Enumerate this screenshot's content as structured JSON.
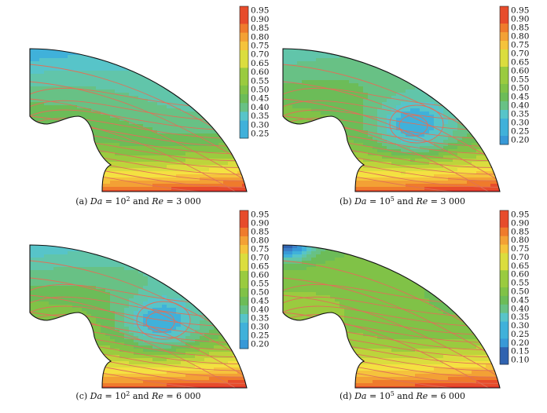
{
  "chart_data": [
    {
      "type": "heatmap",
      "panel": "a",
      "caption": {
        "prefix": "(a) ",
        "var1": "Da",
        "eq1": " = 10",
        "exp1": "2",
        "mid": " and ",
        "var2": "Re",
        "eq2": " = 3 000"
      },
      "colorbar": {
        "ticks": [
          "0.95",
          "0.90",
          "0.85",
          "0.80",
          "0.75",
          "0.70",
          "0.65",
          "0.60",
          "0.55",
          "0.50",
          "0.45",
          "0.40",
          "0.35",
          "0.30",
          "0.25"
        ],
        "min": 0.25,
        "max": 0.95
      },
      "field": {
        "top": 0.25,
        "mid": 0.48,
        "bottom": 0.95,
        "vortex": false,
        "vortexVal": 0.3,
        "cornerLow": false
      }
    },
    {
      "type": "heatmap",
      "panel": "b",
      "caption": {
        "prefix": "(b) ",
        "var1": "Da",
        "eq1": " = 10",
        "exp1": "5",
        "mid": " and ",
        "var2": "Re",
        "eq2": " = 3 000"
      },
      "colorbar": {
        "ticks": [
          "0.95",
          "0.90",
          "0.85",
          "0.80",
          "0.75",
          "0.70",
          "0.65",
          "0.60",
          "0.55",
          "0.50",
          "0.45",
          "0.40",
          "0.35",
          "0.30",
          "0.25",
          "0.20"
        ],
        "min": 0.2,
        "max": 0.95
      },
      "field": {
        "top": 0.35,
        "mid": 0.5,
        "bottom": 0.95,
        "vortex": true,
        "vortexVal": 0.25,
        "cornerLow": false
      }
    },
    {
      "type": "heatmap",
      "panel": "c",
      "caption": {
        "prefix": "(c) ",
        "var1": "Da",
        "eq1": " = 10",
        "exp1": "2",
        "mid": " and ",
        "var2": "Re",
        "eq2": " = 6 000"
      },
      "colorbar": {
        "ticks": [
          "0.95",
          "0.90",
          "0.85",
          "0.80",
          "0.75",
          "0.70",
          "0.65",
          "0.60",
          "0.55",
          "0.50",
          "0.45",
          "0.40",
          "0.35",
          "0.30",
          "0.25",
          "0.20"
        ],
        "min": 0.2,
        "max": 0.95
      },
      "field": {
        "top": 0.3,
        "mid": 0.52,
        "bottom": 0.95,
        "vortex": true,
        "vortexVal": 0.25,
        "cornerLow": false
      }
    },
    {
      "type": "heatmap",
      "panel": "d",
      "caption": {
        "prefix": "(d) ",
        "var1": "Da",
        "eq1": " = 10",
        "exp1": "5",
        "mid": " and ",
        "var2": "Re",
        "eq2": " = 6 000"
      },
      "colorbar": {
        "ticks": [
          "0.95",
          "0.90",
          "0.85",
          "0.80",
          "0.75",
          "0.70",
          "0.65",
          "0.60",
          "0.55",
          "0.50",
          "0.45",
          "0.40",
          "0.35",
          "0.30",
          "0.25",
          "0.20",
          "0.15",
          "0.10"
        ],
        "min": 0.1,
        "max": 0.95
      },
      "field": {
        "top": 0.45,
        "mid": 0.55,
        "bottom": 0.95,
        "vortex": false,
        "vortexVal": 0.4,
        "cornerLow": true
      }
    }
  ],
  "colors": {
    "colormap": [
      "#2a56a4",
      "#3c7fc8",
      "#36a9e1",
      "#5ac7c7",
      "#67c393",
      "#6dbb4e",
      "#92c940",
      "#c8d73a",
      "#f4e542",
      "#f6b73a",
      "#ef7d2c",
      "#e3352b"
    ],
    "contour": "#e07058",
    "boundary": "#111111"
  }
}
